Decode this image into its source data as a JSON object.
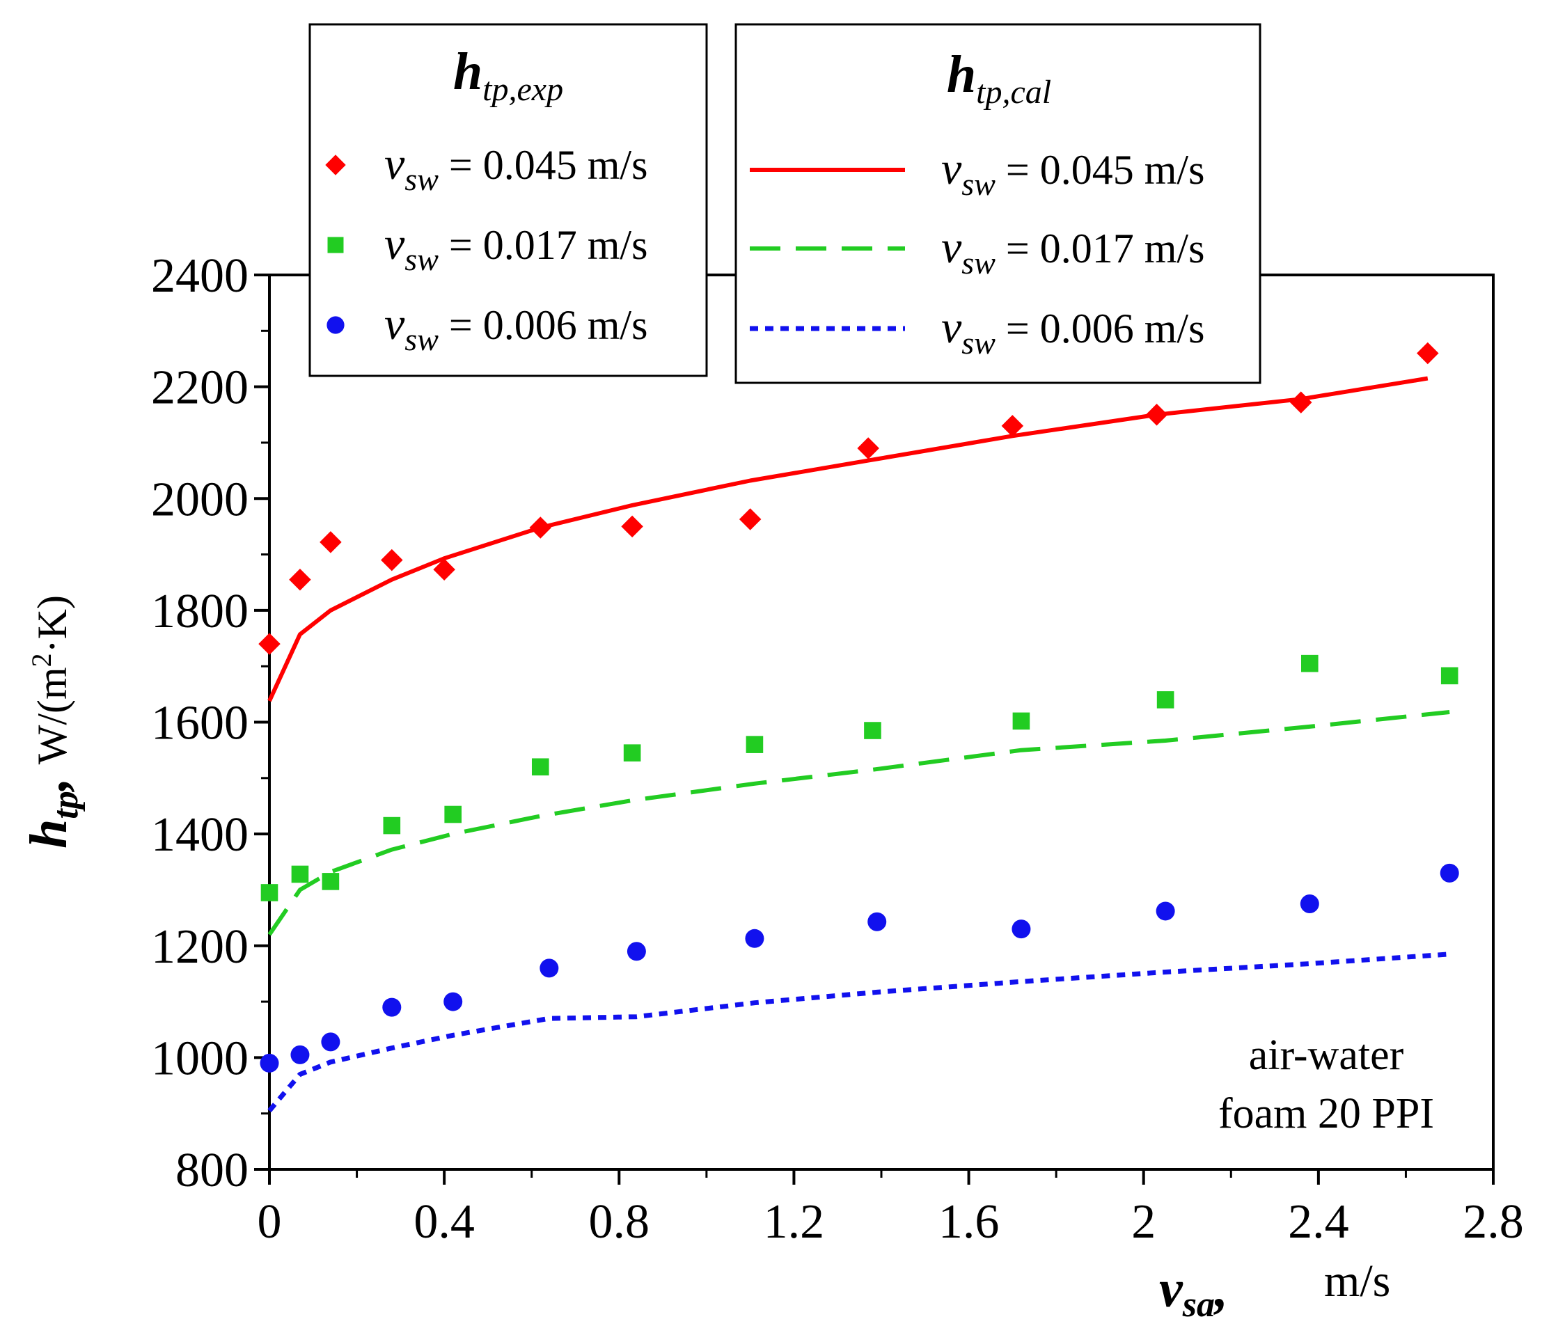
{
  "chart_data": {
    "type": "scatter",
    "title": "",
    "xlabel": {
      "symbol": "v",
      "subscript": "sa",
      "punct": ",",
      "unit": "m/s"
    },
    "ylabel": {
      "symbol": "h",
      "subscript": "tp",
      "punct": ",",
      "unit_prefix": "W/(m",
      "unit_sup": "2",
      "unit_suffix": "·K)"
    },
    "xlim": [
      0,
      2.8
    ],
    "ylim": [
      800,
      2400
    ],
    "xticks": [
      0,
      0.4,
      0.8,
      1.2,
      1.6,
      2,
      2.4,
      2.8
    ],
    "xtick_labels": [
      "0",
      "0.4",
      "0.8",
      "1.2",
      "1.6",
      "2",
      "2.4",
      "2.8"
    ],
    "yticks": [
      800,
      1000,
      1200,
      1400,
      1600,
      1800,
      2000,
      2200,
      2400
    ],
    "ytick_labels": [
      "800",
      "1000",
      "1200",
      "1400",
      "1600",
      "1800",
      "2000",
      "2200",
      "2400"
    ],
    "annotation": [
      "air-water",
      "foam 20 PPI"
    ],
    "legend_exp": {
      "title_symbol": "h",
      "title_subscript": "tp,exp",
      "placement": "top-left",
      "entries": [
        {
          "symbol": "v",
          "subscript": "sw",
          "text": " = 0.045 m/s",
          "series": 0
        },
        {
          "symbol": "v",
          "subscript": "sw",
          "text": " = 0.017 m/s",
          "series": 1
        },
        {
          "symbol": "v",
          "subscript": "sw",
          "text": " = 0.006 m/s",
          "series": 2
        }
      ]
    },
    "legend_cal": {
      "title_symbol": "h",
      "title_subscript": "tp,cal",
      "placement": "top-center",
      "entries": [
        {
          "symbol": "v",
          "subscript": "sw",
          "text": " = 0.045 m/s",
          "series": 0
        },
        {
          "symbol": "v",
          "subscript": "sw",
          "text": " = 0.017 m/s",
          "series": 1
        },
        {
          "symbol": "v",
          "subscript": "sw",
          "text": " = 0.006 m/s",
          "series": 2
        }
      ]
    },
    "series": [
      {
        "name": "v_sw = 0.045 m/s",
        "color": "#ff0000",
        "marker": "diamond",
        "line_style": "solid",
        "exp": [
          [
            0.0,
            1740
          ],
          [
            0.07,
            1855
          ],
          [
            0.14,
            1922
          ],
          [
            0.28,
            1890
          ],
          [
            0.4,
            1873
          ],
          [
            0.62,
            1948
          ],
          [
            0.83,
            1950
          ],
          [
            1.1,
            1963
          ],
          [
            1.37,
            2090
          ],
          [
            1.7,
            2130
          ],
          [
            2.03,
            2150
          ],
          [
            2.36,
            2172
          ],
          [
            2.65,
            2260
          ]
        ],
        "cal": [
          [
            0.0,
            1638
          ],
          [
            0.07,
            1757
          ],
          [
            0.14,
            1800
          ],
          [
            0.28,
            1855
          ],
          [
            0.4,
            1893
          ],
          [
            0.62,
            1948
          ],
          [
            0.83,
            1988
          ],
          [
            1.1,
            2032
          ],
          [
            1.37,
            2068
          ],
          [
            1.7,
            2112
          ],
          [
            2.03,
            2150
          ],
          [
            2.36,
            2178
          ],
          [
            2.65,
            2215
          ]
        ]
      },
      {
        "name": "v_sw = 0.017 m/s",
        "color": "#22cc22",
        "marker": "square",
        "line_style": "dashed",
        "exp": [
          [
            0.0,
            1295
          ],
          [
            0.07,
            1328
          ],
          [
            0.14,
            1315
          ],
          [
            0.28,
            1415
          ],
          [
            0.42,
            1435
          ],
          [
            0.62,
            1520
          ],
          [
            0.83,
            1545
          ],
          [
            1.11,
            1560
          ],
          [
            1.38,
            1585
          ],
          [
            1.72,
            1602
          ],
          [
            2.05,
            1640
          ],
          [
            2.38,
            1705
          ],
          [
            2.7,
            1683
          ]
        ],
        "cal": [
          [
            0.0,
            1220
          ],
          [
            0.07,
            1300
          ],
          [
            0.14,
            1332
          ],
          [
            0.28,
            1372
          ],
          [
            0.42,
            1400
          ],
          [
            0.62,
            1432
          ],
          [
            0.83,
            1460
          ],
          [
            1.11,
            1490
          ],
          [
            1.38,
            1515
          ],
          [
            1.72,
            1550
          ],
          [
            2.05,
            1567
          ],
          [
            2.38,
            1592
          ],
          [
            2.7,
            1618
          ]
        ]
      },
      {
        "name": "v_sw = 0.006 m/s",
        "color": "#1111ee",
        "marker": "circle",
        "line_style": "dotted",
        "exp": [
          [
            0.0,
            990
          ],
          [
            0.07,
            1005
          ],
          [
            0.14,
            1028
          ],
          [
            0.28,
            1090
          ],
          [
            0.42,
            1100
          ],
          [
            0.64,
            1160
          ],
          [
            0.84,
            1190
          ],
          [
            1.11,
            1213
          ],
          [
            1.39,
            1243
          ],
          [
            1.72,
            1230
          ],
          [
            2.05,
            1262
          ],
          [
            2.38,
            1275
          ],
          [
            2.7,
            1330
          ]
        ],
        "cal": [
          [
            0.0,
            905
          ],
          [
            0.07,
            970
          ],
          [
            0.14,
            992
          ],
          [
            0.28,
            1017
          ],
          [
            0.42,
            1040
          ],
          [
            0.64,
            1070
          ],
          [
            0.84,
            1073
          ],
          [
            1.11,
            1098
          ],
          [
            1.39,
            1117
          ],
          [
            1.72,
            1136
          ],
          [
            2.05,
            1153
          ],
          [
            2.38,
            1168
          ],
          [
            2.7,
            1185
          ]
        ]
      }
    ]
  }
}
